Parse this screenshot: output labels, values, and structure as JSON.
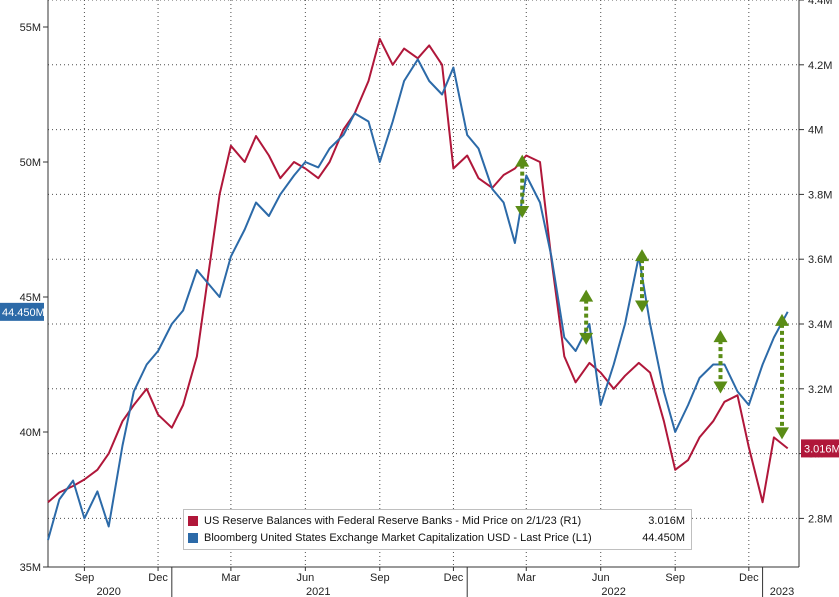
{
  "chart_data": {
    "type": "line",
    "title": "",
    "x_axis": {
      "month_labels": [
        "Sep",
        "Dec",
        "Mar",
        "Jun",
        "Sep",
        "Dec",
        "Mar",
        "Jun",
        "Sep",
        "Dec"
      ],
      "year_labels": [
        "2020",
        "2021",
        "2022",
        "2023"
      ]
    },
    "left_axis": {
      "ticks": [
        "35M",
        "40M",
        "45M",
        "50M",
        "55M"
      ],
      "ylim": [
        35,
        56
      ],
      "unit": "M"
    },
    "right_axis": {
      "ticks": [
        "2.8M",
        "3M",
        "3.2M",
        "3.4M",
        "3.6M",
        "3.8M",
        "4M",
        "4.2M",
        "4.4M"
      ],
      "ylim": [
        2.65,
        4.4
      ],
      "unit": "M"
    },
    "grid": true,
    "series": [
      {
        "name": "US Reserve Balances with Federal Reserve Banks - Mid Price on 2/1/23 (R1)",
        "axis": "right",
        "color": "#b0173a",
        "last_label": "3.016M",
        "legend_value": "3.016M",
        "x": [
          "2020-08-01",
          "2020-08-15",
          "2020-09-01",
          "2020-09-15",
          "2020-10-01",
          "2020-10-15",
          "2020-11-01",
          "2020-11-15",
          "2020-12-01",
          "2020-12-15",
          "2021-01-01",
          "2021-01-15",
          "2021-02-01",
          "2021-02-15",
          "2021-03-01",
          "2021-03-15",
          "2021-04-01",
          "2021-04-15",
          "2021-05-01",
          "2021-05-15",
          "2021-06-01",
          "2021-06-15",
          "2021-07-01",
          "2021-07-15",
          "2021-08-01",
          "2021-08-15",
          "2021-09-01",
          "2021-09-15",
          "2021-10-01",
          "2021-10-15",
          "2021-11-01",
          "2021-11-15",
          "2021-12-01",
          "2021-12-15",
          "2022-01-01",
          "2022-01-15",
          "2022-02-01",
          "2022-02-15",
          "2022-03-01",
          "2022-03-15",
          "2022-04-01",
          "2022-04-15",
          "2022-05-01",
          "2022-05-15",
          "2022-06-01",
          "2022-06-15",
          "2022-07-01",
          "2022-07-15",
          "2022-08-01",
          "2022-08-15",
          "2022-09-01",
          "2022-09-15",
          "2022-10-01",
          "2022-10-15",
          "2022-11-01",
          "2022-11-15",
          "2022-12-01",
          "2022-12-15",
          "2023-01-01",
          "2023-01-15",
          "2023-02-01"
        ],
        "values": [
          2.85,
          2.88,
          2.9,
          2.92,
          2.95,
          3.0,
          3.1,
          3.15,
          3.2,
          3.12,
          3.08,
          3.15,
          3.3,
          3.55,
          3.8,
          3.95,
          3.9,
          3.98,
          3.92,
          3.85,
          3.9,
          3.88,
          3.85,
          3.9,
          4.0,
          4.05,
          4.15,
          4.28,
          4.2,
          4.25,
          4.22,
          4.26,
          4.2,
          3.88,
          3.92,
          3.85,
          3.82,
          3.86,
          3.88,
          3.92,
          3.9,
          3.6,
          3.3,
          3.22,
          3.28,
          3.25,
          3.2,
          3.24,
          3.28,
          3.25,
          3.1,
          2.95,
          2.98,
          3.05,
          3.1,
          3.16,
          3.18,
          3.02,
          2.85,
          3.05,
          3.016
        ]
      },
      {
        "name": "Bloomberg United States Exchange Market Capitalization USD - Last Price (L1)",
        "axis": "left",
        "color": "#2c6aa8",
        "last_label": "44.450M",
        "legend_value": "44.450M",
        "x": [
          "2020-08-01",
          "2020-08-15",
          "2020-09-01",
          "2020-09-15",
          "2020-10-01",
          "2020-10-15",
          "2020-11-01",
          "2020-11-15",
          "2020-12-01",
          "2020-12-15",
          "2021-01-01",
          "2021-01-15",
          "2021-02-01",
          "2021-02-15",
          "2021-03-01",
          "2021-03-15",
          "2021-04-01",
          "2021-04-15",
          "2021-05-01",
          "2021-05-15",
          "2021-06-01",
          "2021-06-15",
          "2021-07-01",
          "2021-07-15",
          "2021-08-01",
          "2021-08-15",
          "2021-09-01",
          "2021-09-15",
          "2021-10-01",
          "2021-10-15",
          "2021-11-01",
          "2021-11-15",
          "2021-12-01",
          "2021-12-15",
          "2022-01-01",
          "2022-01-15",
          "2022-02-01",
          "2022-02-15",
          "2022-03-01",
          "2022-03-15",
          "2022-04-01",
          "2022-04-15",
          "2022-05-01",
          "2022-05-15",
          "2022-06-01",
          "2022-06-15",
          "2022-07-01",
          "2022-07-15",
          "2022-08-01",
          "2022-08-15",
          "2022-09-01",
          "2022-09-15",
          "2022-10-01",
          "2022-10-15",
          "2022-11-01",
          "2022-11-15",
          "2022-12-01",
          "2022-12-15",
          "2023-01-01",
          "2023-01-15",
          "2023-02-01"
        ],
        "values": [
          36.0,
          37.5,
          38.2,
          36.8,
          37.8,
          36.5,
          39.5,
          41.5,
          42.5,
          43.0,
          44.0,
          44.5,
          46.0,
          45.5,
          45.0,
          46.5,
          47.5,
          48.5,
          48.0,
          48.8,
          49.5,
          50.0,
          49.8,
          50.5,
          51.0,
          51.8,
          51.5,
          50.0,
          51.5,
          53.0,
          53.8,
          53.0,
          52.5,
          53.5,
          51.0,
          50.5,
          49.0,
          48.5,
          47.0,
          49.5,
          48.5,
          46.5,
          43.5,
          43.0,
          44.0,
          41.0,
          42.5,
          44.0,
          46.5,
          44.0,
          41.5,
          40.0,
          41.0,
          42.0,
          42.5,
          42.5,
          41.5,
          41.0,
          42.5,
          43.5,
          44.45
        ]
      }
    ],
    "annotations": [
      {
        "shape": "double-arrow",
        "x": "2022-03-10",
        "axis": "left",
        "y_from": 48.0,
        "y_to": 50.2,
        "color": "#5a8c16"
      },
      {
        "shape": "double-arrow",
        "x": "2022-05-28",
        "axis": "left",
        "y_from": 43.3,
        "y_to": 45.2,
        "color": "#5a8c16"
      },
      {
        "shape": "double-arrow",
        "x": "2022-08-05",
        "axis": "left",
        "y_from": 44.5,
        "y_to": 46.7,
        "color": "#5a8c16"
      },
      {
        "shape": "double-arrow",
        "x": "2022-11-10",
        "axis": "left",
        "y_from": 41.5,
        "y_to": 43.7,
        "color": "#5a8c16"
      },
      {
        "shape": "double-arrow",
        "x": "2023-01-25",
        "axis": "left",
        "y_from": 39.8,
        "y_to": 44.3,
        "color": "#5a8c16"
      }
    ]
  },
  "legend": {
    "items": [
      {
        "label": "US Reserve Balances with Federal Reserve Banks - Mid Price on 2/1/23 (R1)",
        "value": "3.016M",
        "color": "#b0173a"
      },
      {
        "label": "Bloomberg United States Exchange Market Capitalization USD - Last Price (L1)",
        "value": "44.450M",
        "color": "#2c6aa8"
      }
    ]
  }
}
